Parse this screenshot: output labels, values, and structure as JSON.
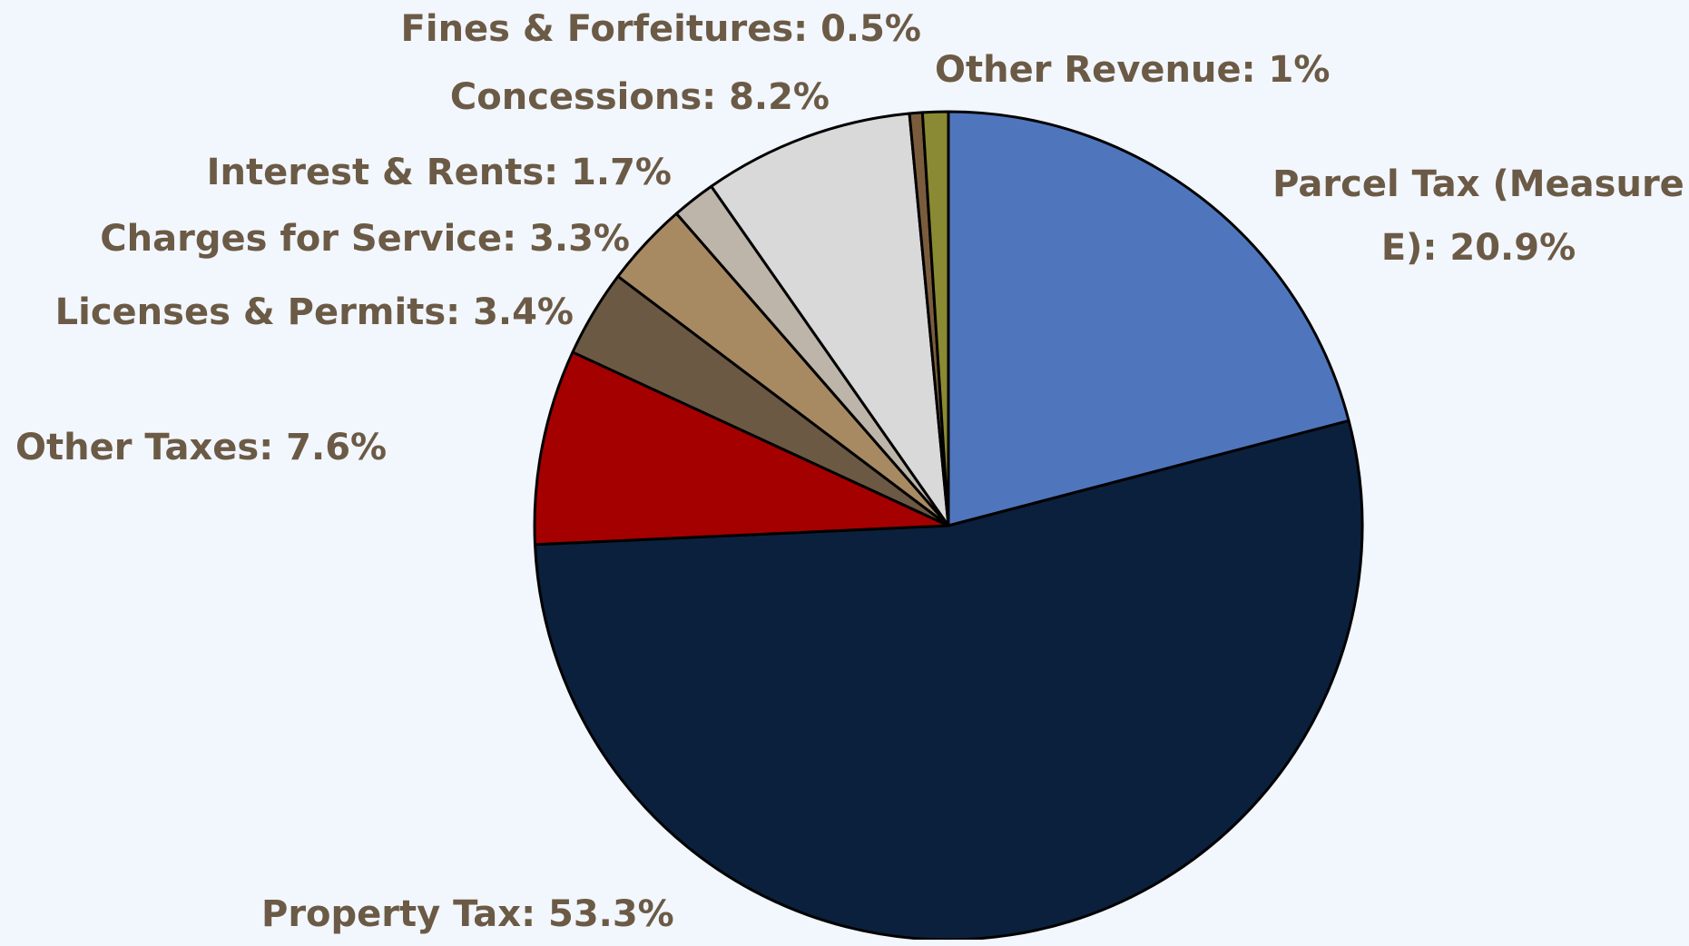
{
  "chart_data": {
    "type": "pie",
    "categories": [
      "Parcel Tax (Measure E)",
      "Property Tax",
      "Other Taxes",
      "Licenses & Permits",
      "Charges for Service",
      "Interest & Rents",
      "Concessions",
      "Fines & Forfeitures",
      "Other Revenue"
    ],
    "values": [
      20.9,
      53.3,
      7.6,
      3.4,
      3.3,
      1.7,
      8.2,
      0.5,
      1
    ],
    "value_labels": [
      "20.9%",
      "53.3%",
      "7.6%",
      "3.4%",
      "3.3%",
      "1.7%",
      "8.2%",
      "0.5%",
      "1%"
    ],
    "colors": [
      "#4f76bd",
      "#0a203d",
      "#a50000",
      "#6b5944",
      "#a88a62",
      "#bdb5a9",
      "#d9d9d9",
      "#7a5c3c",
      "#8a8a35"
    ]
  }
}
